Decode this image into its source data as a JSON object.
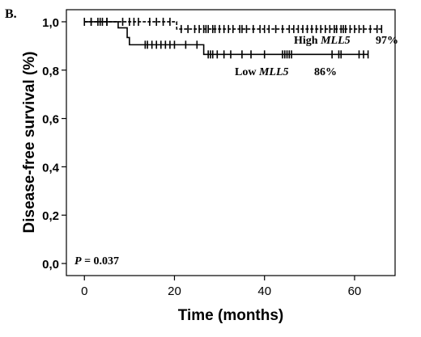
{
  "chart_data": {
    "type": "line",
    "panel_label": "B.",
    "xlabel": "Time (months)",
    "ylabel": "Disease-free survival (%)",
    "xlim": [
      -4,
      69
    ],
    "ylim": [
      -0.05,
      1.05
    ],
    "x_ticks": [
      0,
      20,
      40,
      60
    ],
    "x_tick_labels": [
      "0",
      "20",
      "40",
      "60"
    ],
    "y_ticks": [
      0.0,
      0.2,
      0.4,
      0.6,
      0.8,
      1.0
    ],
    "y_tick_labels": [
      "0,0",
      "0,2",
      "0,4",
      "0,6",
      "0,8",
      "1,0"
    ],
    "grid": false,
    "pvalue_label": "P",
    "pvalue_text": " = 0.037",
    "series": [
      {
        "name_prefix": "High ",
        "name_gene": "MLL5",
        "final_pct_label": "97%",
        "color": "#000000",
        "dashed": true,
        "steps": [
          [
            0,
            1.0
          ],
          [
            20.5,
            0.97
          ],
          [
            66,
            0.97
          ]
        ],
        "censored": [
          0,
          1.5,
          3.5,
          4,
          5,
          8.5,
          10,
          11,
          12,
          14.5,
          16,
          17.5,
          19,
          21.5,
          23,
          24.5,
          25.5,
          26.5,
          27,
          27.5,
          28.5,
          29,
          30,
          31,
          32,
          33,
          34.5,
          35,
          36,
          37.5,
          39,
          40,
          41,
          42.5,
          44,
          45.5,
          46.5,
          47.5,
          48.5,
          49.5,
          50.5,
          51.5,
          52.5,
          53.5,
          54.5,
          55.5,
          56,
          57,
          57.5,
          58,
          59,
          60,
          61,
          62,
          63.5,
          65,
          66
        ]
      },
      {
        "name_prefix": "Low ",
        "name_gene": "MLL5",
        "final_pct_label": "86%",
        "color": "#000000",
        "dashed": false,
        "steps": [
          [
            0,
            1.0
          ],
          [
            7.5,
            0.975
          ],
          [
            9.5,
            0.935
          ],
          [
            10,
            0.905
          ],
          [
            26.5,
            0.865
          ],
          [
            63,
            0.865
          ]
        ],
        "censored": [
          1.5,
          3,
          5,
          13.5,
          14,
          15,
          16,
          17,
          18,
          19,
          20,
          22.5,
          25,
          27.5,
          28,
          28.5,
          29.5,
          31,
          32.5,
          35,
          37,
          40,
          44,
          44.5,
          45,
          45.5,
          46,
          55,
          56.5,
          57,
          61,
          62,
          63
        ]
      }
    ]
  }
}
